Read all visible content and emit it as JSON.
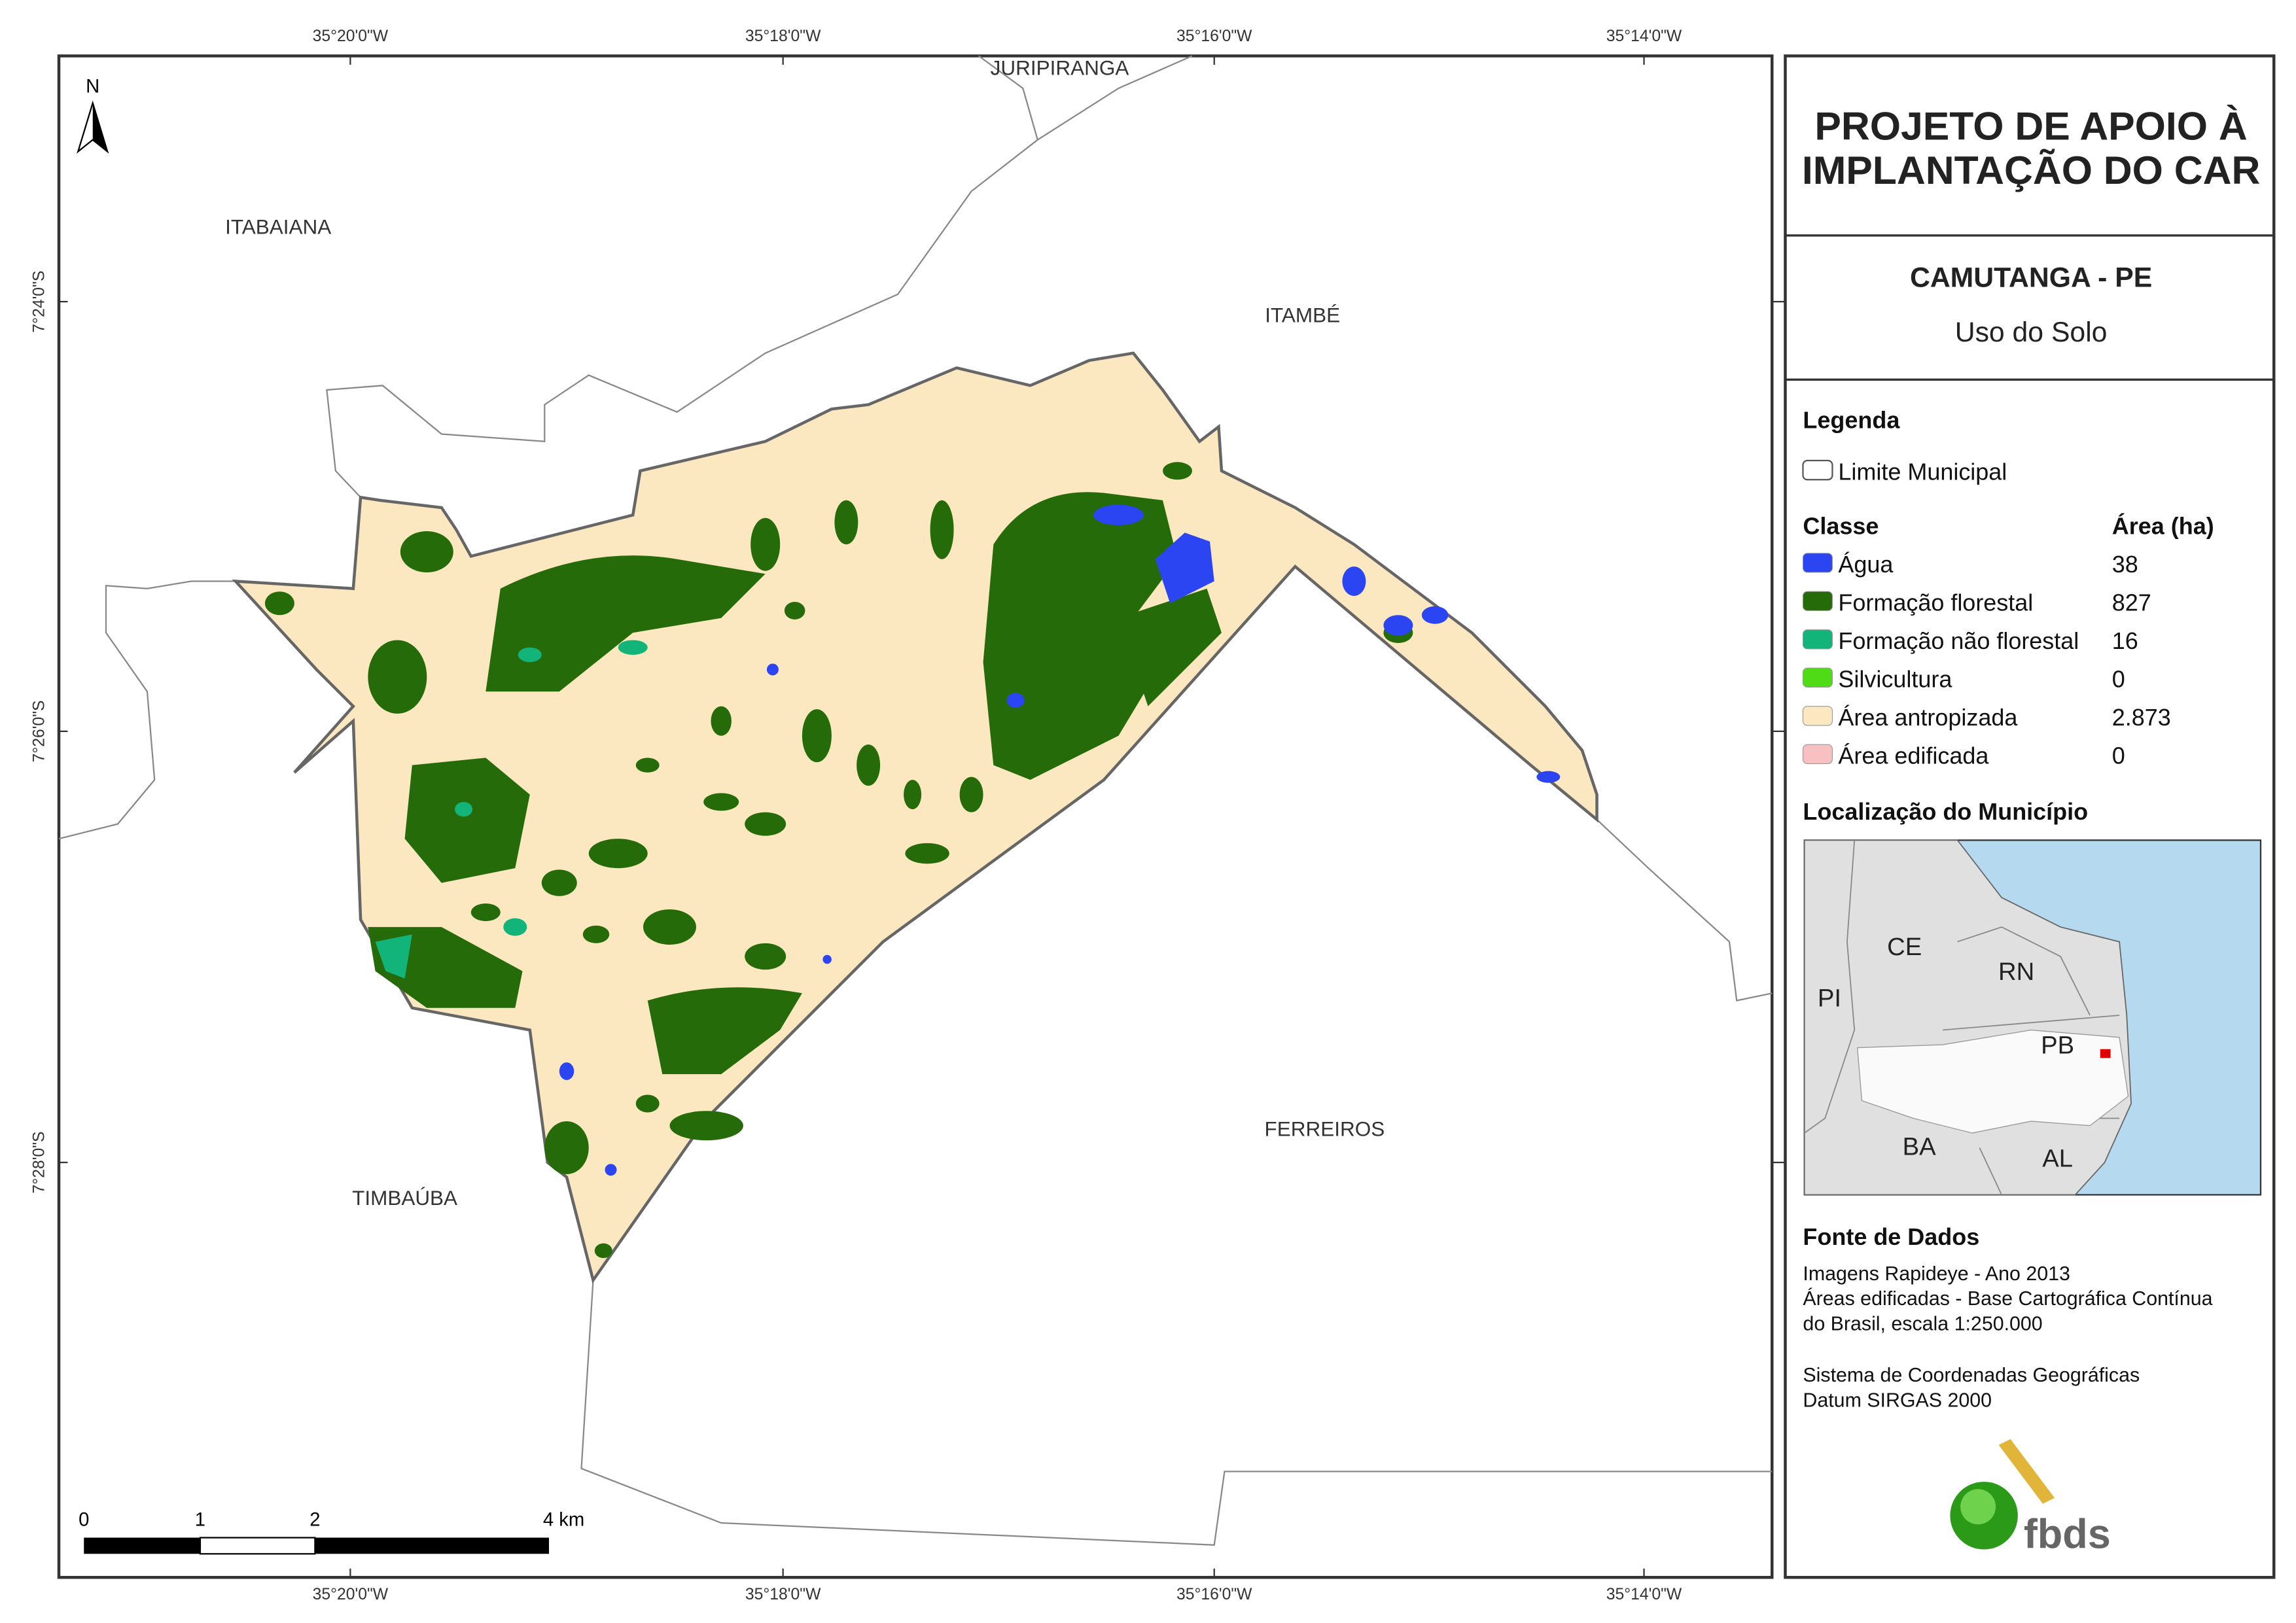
{
  "title": [
    "PROJETO DE APOIO À",
    "IMPLANTAÇÃO DO CAR"
  ],
  "municipality": "CAMUTANGA - PE",
  "subtitle": "Uso do Solo",
  "legend": {
    "title": "Legenda",
    "boundary": "Limite Municipal",
    "class_header": "Classe",
    "area_header": "Área (ha)",
    "classes": [
      {
        "name": "Água",
        "area": "38",
        "color": "#2b45f2"
      },
      {
        "name": "Formação florestal",
        "area": "827",
        "color": "#266b0a"
      },
      {
        "name": "Formação não florestal",
        "area": "16",
        "color": "#12b47a"
      },
      {
        "name": "Silvicultura",
        "area": "0",
        "color": "#4fdb16"
      },
      {
        "name": "Área antropizada",
        "area": "2.873",
        "color": "#fbe8c0"
      },
      {
        "name": "Área edificada",
        "area": "0",
        "color": "#f8c0c0"
      }
    ]
  },
  "location": {
    "title": "Localização do Município",
    "states": [
      "CE",
      "RN",
      "PI",
      "PB",
      "BA",
      "AL"
    ]
  },
  "sources": {
    "title": "Fonte de Dados",
    "lines": [
      "Imagens Rapideye - Ano 2013",
      "Áreas edificadas - Base Cartográfica Contínua",
      "do Brasil, escala 1:250.000",
      "Sistema de Coordenadas Geográficas",
      "Datum SIRGAS 2000"
    ]
  },
  "map": {
    "neighbors": [
      "JURIPIRANGA",
      "ITABAIANA",
      "ITAMBÉ",
      "TIMBAÚBA",
      "FERREIROS"
    ],
    "lon_ticks": [
      "35°20'0\"W",
      "35°18'0\"W",
      "35°16'0\"W",
      "35°14'0\"W"
    ],
    "lat_ticks": [
      "7°24'0\"S",
      "7°26'0\"S",
      "7°28'0\"S"
    ],
    "north": "N",
    "scale_labels": [
      "0",
      "1",
      "2",
      "4 km"
    ]
  },
  "logo": "fbds"
}
